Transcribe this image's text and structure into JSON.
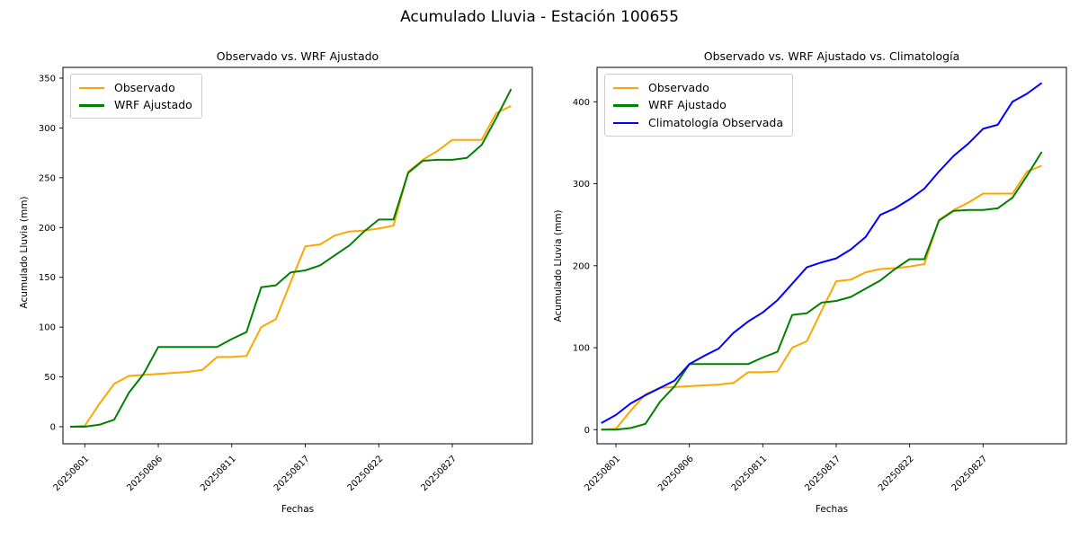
{
  "suptitle": "Acumulado Lluvia - Estación 100655",
  "figure_bg": "#ffffff",
  "chart_data": [
    {
      "type": "line",
      "title": "Observado vs. WRF Ajustado",
      "xlabel": "Fechas",
      "ylabel": "Acumulado Lluvia (mm)",
      "legend_position": "upper left",
      "grid": false,
      "x_points": 31,
      "x_tick_labels": [
        "20250801",
        "20250806",
        "20250811",
        "20250817",
        "20250822",
        "20250827"
      ],
      "x_tick_point_indices": [
        1,
        6,
        11,
        16,
        21,
        26
      ],
      "y_ticks": [
        0,
        50,
        100,
        150,
        200,
        250,
        300,
        350
      ],
      "ylim": [
        0,
        350
      ],
      "series": [
        {
          "name": "Observado",
          "color": "#FFA500",
          "values": [
            0,
            1,
            23,
            43,
            51,
            52,
            53,
            54,
            55,
            57,
            70,
            70,
            71,
            100,
            108,
            145,
            181,
            183,
            192,
            196,
            197,
            199,
            202,
            256,
            268,
            277,
            288,
            288,
            288,
            315,
            322
          ]
        },
        {
          "name": "WRF Ajustado",
          "color": "#008000",
          "values": [
            0,
            0,
            2,
            7,
            34,
            53,
            80,
            80,
            80,
            80,
            80,
            88,
            95,
            140,
            142,
            155,
            157,
            162,
            172,
            182,
            196,
            208,
            208,
            255,
            267,
            268,
            268,
            270,
            283,
            310,
            339
          ]
        }
      ]
    },
    {
      "type": "line",
      "title": "Observado vs. WRF Ajustado vs. Climatología",
      "xlabel": "Fechas",
      "ylabel": "Acumulado Lluvia (mm)",
      "legend_position": "upper left",
      "grid": false,
      "x_points": 31,
      "x_tick_labels": [
        "20250801",
        "20250806",
        "20250811",
        "20250817",
        "20250822",
        "20250827"
      ],
      "x_tick_point_indices": [
        1,
        6,
        11,
        16,
        21,
        26
      ],
      "y_ticks": [
        0,
        100,
        200,
        300,
        400
      ],
      "ylim": [
        0,
        425
      ],
      "series": [
        {
          "name": "Observado",
          "color": "#FFA500",
          "values": [
            0,
            1,
            23,
            43,
            51,
            52,
            53,
            54,
            55,
            57,
            70,
            70,
            71,
            100,
            108,
            145,
            181,
            183,
            192,
            196,
            197,
            199,
            202,
            256,
            268,
            277,
            288,
            288,
            288,
            315,
            322
          ]
        },
        {
          "name": "WRF Ajustado",
          "color": "#008000",
          "values": [
            0,
            0,
            2,
            7,
            34,
            53,
            80,
            80,
            80,
            80,
            80,
            88,
            95,
            140,
            142,
            155,
            157,
            162,
            172,
            182,
            196,
            208,
            208,
            255,
            267,
            268,
            268,
            270,
            283,
            310,
            339
          ]
        },
        {
          "name": "Climatología Observada",
          "color": "#0000FF",
          "values": [
            8,
            18,
            32,
            42,
            51,
            60,
            80,
            90,
            99,
            118,
            132,
            143,
            158,
            178,
            198,
            204,
            209,
            220,
            235,
            262,
            270,
            281,
            294,
            315,
            334,
            349,
            367,
            372,
            400,
            410,
            423
          ]
        }
      ]
    }
  ]
}
